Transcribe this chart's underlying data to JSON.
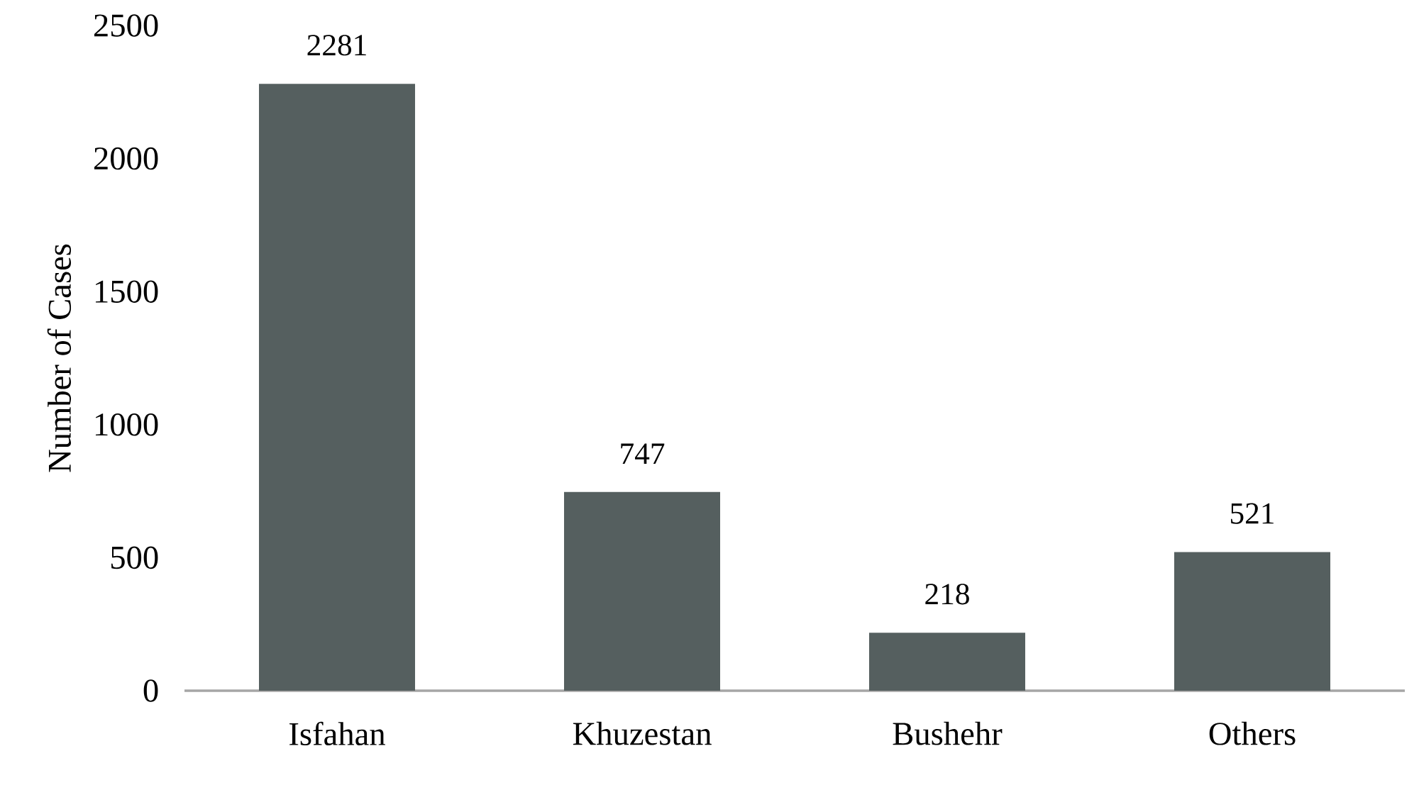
{
  "chart_data": {
    "type": "bar",
    "ylabel": "Number of Cases",
    "categories": [
      "Isfahan",
      "Khuzestan",
      "Bushehr",
      "Others"
    ],
    "values": [
      2281,
      747,
      218,
      521
    ],
    "color": "#555f5f",
    "ylim": [
      0,
      2500
    ],
    "yticks": [
      0,
      500,
      1000,
      1500,
      2000,
      2500
    ],
    "data_labels": true
  }
}
